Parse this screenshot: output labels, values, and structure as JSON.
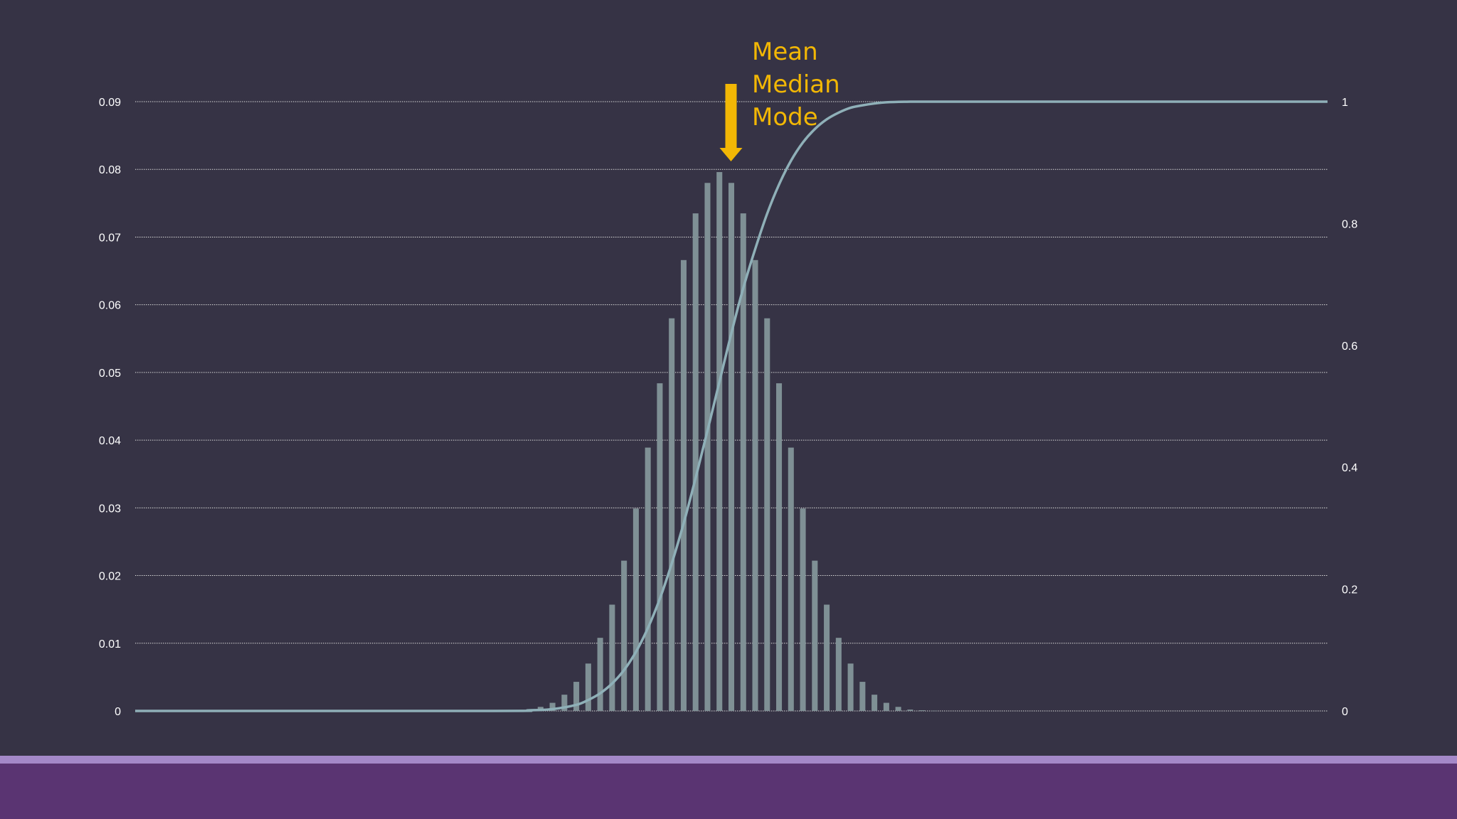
{
  "colors": {
    "background": "#363345",
    "bar": "#7f9095",
    "cdf_line": "#8fb0b8",
    "annotation": "#f2b705",
    "footer": "#5a3472",
    "footer_accent": "#a488c8"
  },
  "annotation": {
    "lines": [
      "Mean",
      "Median",
      "Mode"
    ]
  },
  "chart_data": {
    "type": "bar",
    "title": "",
    "xlabel": "",
    "ylabel": "",
    "ylim": [
      0,
      0.09
    ],
    "y_ticks": [
      "0",
      "0.01",
      "0.02",
      "0.03",
      "0.04",
      "0.05",
      "0.06",
      "0.07",
      "0.08",
      "0.09"
    ],
    "y2lim": [
      0,
      1
    ],
    "y2_ticks": [
      "0",
      "0.2",
      "0.4",
      "0.6",
      "0.8",
      "1"
    ],
    "grid": true,
    "x_range": [
      0,
      100
    ],
    "bars": {
      "x": [
        33,
        34,
        35,
        36,
        37,
        38,
        39,
        40,
        41,
        42,
        43,
        44,
        45,
        46,
        47,
        48,
        49,
        50,
        51,
        52,
        53,
        54,
        55,
        56,
        57,
        58,
        59,
        60,
        61,
        62,
        63,
        64,
        65,
        66,
        67
      ],
      "values": [
        0.0002,
        0.0006,
        0.0012,
        0.0024,
        0.0043,
        0.007,
        0.0108,
        0.0157,
        0.0222,
        0.0299,
        0.0389,
        0.0484,
        0.058,
        0.0666,
        0.0735,
        0.078,
        0.0796,
        0.078,
        0.0735,
        0.0666,
        0.058,
        0.0484,
        0.0389,
        0.0299,
        0.0222,
        0.0157,
        0.0108,
        0.007,
        0.0043,
        0.0024,
        0.0012,
        0.0006,
        0.0002,
        0.0001,
        3e-05
      ]
    },
    "cdf_line": {
      "axis": "secondary",
      "x": [
        0,
        30,
        33,
        35,
        37,
        38,
        39,
        40,
        41,
        42,
        43,
        44,
        45,
        46,
        47,
        48,
        49,
        50,
        51,
        52,
        53,
        54,
        55,
        56,
        57,
        58,
        59,
        60,
        61,
        62,
        63,
        65,
        67,
        70,
        75,
        80,
        90,
        100
      ],
      "values": [
        0,
        0,
        0.001,
        0.003,
        0.01,
        0.018,
        0.029,
        0.045,
        0.067,
        0.097,
        0.136,
        0.184,
        0.242,
        0.308,
        0.382,
        0.46,
        0.54,
        0.62,
        0.694,
        0.758,
        0.816,
        0.864,
        0.903,
        0.933,
        0.955,
        0.971,
        0.982,
        0.99,
        0.994,
        0.997,
        0.999,
        1,
        1,
        1,
        1,
        1,
        1,
        1
      ]
    },
    "marker_x": 50
  }
}
